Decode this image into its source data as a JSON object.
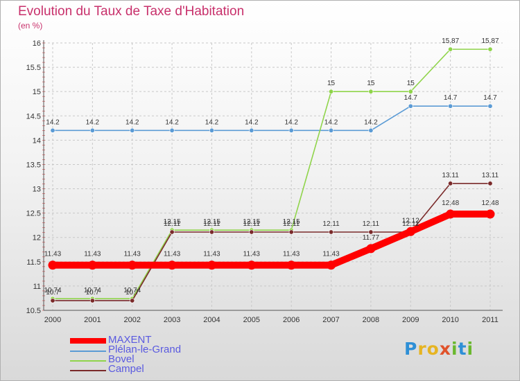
{
  "chart_data": {
    "type": "line",
    "title": "Evolution du Taux de Taxe d'Habitation",
    "subtitle": "(en %)",
    "x": [
      "2000",
      "2001",
      "2002",
      "2003",
      "2004",
      "2005",
      "2006",
      "2007",
      "2008",
      "2009",
      "2010",
      "2011"
    ],
    "ylim": [
      10.5,
      16
    ],
    "yticks": [
      "10.5",
      "11",
      "11.5",
      "12",
      "12.5",
      "13",
      "13.5",
      "14",
      "14.5",
      "15",
      "15.5",
      "16"
    ],
    "grid": true,
    "legend_position": "bottom-left",
    "series": [
      {
        "name": "MAXENT",
        "color": "#ff0000",
        "values": [
          11.43,
          11.43,
          11.43,
          11.43,
          11.43,
          11.43,
          11.43,
          11.43,
          11.77,
          12.12,
          12.48,
          12.48
        ],
        "labels": [
          "11.43",
          "11.43",
          "11.43",
          "11.43",
          "11.43",
          "11.43",
          "11.43",
          "11.43",
          "11.77",
          "12.12",
          "12.48",
          "12.48"
        ]
      },
      {
        "name": "Plélan-le-Grand",
        "color": "#5b9bd5",
        "values": [
          14.2,
          14.2,
          14.2,
          14.2,
          14.2,
          14.2,
          14.2,
          14.2,
          14.2,
          14.7,
          14.7,
          14.7
        ],
        "labels": [
          "14.2",
          "14.2",
          "14.2",
          "14.2",
          "14.2",
          "14.2",
          "14.2",
          "14.2",
          "14.2",
          "14.7",
          "14.7",
          "14.7"
        ]
      },
      {
        "name": "Bovel",
        "color": "#8fd44a",
        "values": [
          10.74,
          10.74,
          10.74,
          12.15,
          12.15,
          12.15,
          12.15,
          15,
          15,
          15,
          15.87,
          15.87
        ],
        "labels": [
          "10.74",
          "10.74",
          "10.74",
          "12.15",
          "12.15",
          "12.15",
          "12.15",
          "15",
          "15",
          "15",
          "15.87",
          "15.87"
        ]
      },
      {
        "name": "Campel",
        "color": "#7a2a2a",
        "values": [
          10.7,
          10.7,
          10.7,
          12.11,
          12.11,
          12.11,
          12.11,
          12.11,
          12.11,
          12.11,
          13.11,
          13.11
        ],
        "labels": [
          "10.7",
          "10.7",
          "10.7",
          "12.11",
          "12.11",
          "12.11",
          "12.11",
          "12.11",
          "12.11",
          "12.11",
          "13.11",
          "13.11"
        ]
      }
    ]
  },
  "legend": {
    "items": [
      "MAXENT",
      "Plélan-le-Grand",
      "Bovel",
      "Campel"
    ]
  },
  "logo": {
    "letters": [
      "P",
      "r",
      "o",
      "x",
      "i",
      "t",
      "i"
    ]
  }
}
